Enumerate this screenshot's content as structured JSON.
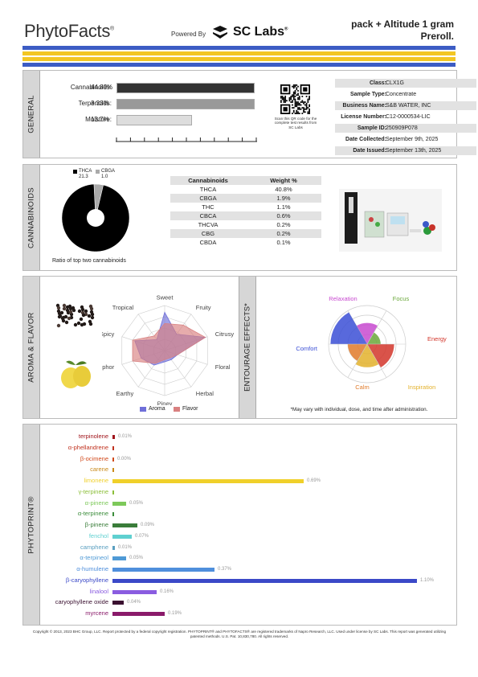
{
  "header": {
    "logo": "PhytoFacts",
    "logo_mark": "®",
    "powered_by": "Powered By",
    "lab": "SC Labs",
    "lab_mark": "®",
    "product_line1": "pack + Altitude 1 gram",
    "product_line2": "Preroll."
  },
  "colors": {
    "stripe_blue": "#3c5cc4",
    "stripe_yellow": "#f3c623"
  },
  "general": {
    "section": "GENERAL",
    "bars": [
      {
        "label": "Cannabinoids:",
        "value": "44.89%",
        "fraction": 1.0,
        "color": "#333333"
      },
      {
        "label": "Terpenoids:",
        "value": "3.33%",
        "fraction": 1.0,
        "color": "#999999"
      },
      {
        "label": "Moisture:",
        "value": "13.7%",
        "fraction": 0.54,
        "color": "#dddddd"
      }
    ],
    "qr_caption": "Scan this QR code for the complete test results from SC Labs",
    "info": [
      {
        "k": "Class:",
        "v": "CLX1G"
      },
      {
        "k": "Sample Type:",
        "v": "Concentrate"
      },
      {
        "k": "Business Name:",
        "v": "S&B WATER, INC"
      },
      {
        "k": "License Number:",
        "v": "C12-0000534-LIC"
      },
      {
        "k": "Sample ID:",
        "v": "250909P078"
      },
      {
        "k": "Date Collected:",
        "v": "September 9th, 2025"
      },
      {
        "k": "Date Issued:",
        "v": "September 13th, 2025"
      }
    ]
  },
  "cannabinoids": {
    "section": "CANNABINOIDS",
    "pie_legend": [
      {
        "name": "THCA",
        "value": "21.3",
        "color": "#000000"
      },
      {
        "name": "CBGA",
        "value": "1.0",
        "color": "#aaaaaa"
      }
    ],
    "pie_caption": "Ratio of top two cannabinoids",
    "table_headers": [
      "Cannabinoids",
      "Weight %"
    ],
    "table_rows": [
      [
        "THCA",
        "40.8%"
      ],
      [
        "CBGA",
        "1.9%"
      ],
      [
        "THC",
        "1.1%"
      ],
      [
        "CBCA",
        "0.6%"
      ],
      [
        "THCVA",
        "0.2%"
      ],
      [
        "CBG",
        "0.2%"
      ],
      [
        "CBDA",
        "0.1%"
      ]
    ]
  },
  "aroma": {
    "section": "AROMA & FLAVOR",
    "axes": [
      "Sweet",
      "Fruity",
      "Citrusy",
      "Floral",
      "Herbal",
      "Piney",
      "Earthy",
      "Camphor",
      "Spicy",
      "Tropical"
    ],
    "aroma_values": [
      0.85,
      0.45,
      0.95,
      0.3,
      0.25,
      0.25,
      0.4,
      0.55,
      0.7,
      0.3
    ],
    "flavor_values": [
      0.6,
      0.7,
      0.95,
      0.3,
      0.2,
      0.2,
      0.35,
      0.75,
      0.75,
      0.4
    ],
    "legend": [
      {
        "name": "Aroma",
        "color": "#6f6fd9"
      },
      {
        "name": "Flavor",
        "color": "#d98080"
      }
    ]
  },
  "entourage": {
    "section": "ENTOURAGE EFFECTS*",
    "labels": [
      {
        "name": "Relaxation",
        "color": "#c84ad0"
      },
      {
        "name": "Focus",
        "color": "#6aa83a"
      },
      {
        "name": "Energy",
        "color": "#d2352a"
      },
      {
        "name": "Inspiration",
        "color": "#e3b12b"
      },
      {
        "name": "Calm",
        "color": "#e07a2a"
      },
      {
        "name": "Comfort",
        "color": "#3b4fd6"
      }
    ],
    "values": [
      0.55,
      0.35,
      0.7,
      0.6,
      0.5,
      0.95
    ],
    "note": "*May vary with individual, dose, and time after administration."
  },
  "phytoprint": {
    "section": "PHYTOPRINT®",
    "max": 1.1,
    "terpenes": [
      {
        "name": "terpinolene",
        "value": 0.01,
        "label": "0.01%",
        "color": "#a0141b"
      },
      {
        "name": "α-phellandrene",
        "value": 0.0,
        "label": "",
        "color": "#c0311e"
      },
      {
        "name": "β-ocimene",
        "value": 0.0,
        "label": "0.00%",
        "color": "#d14a1c"
      },
      {
        "name": "carene",
        "value": 0.0,
        "label": "",
        "color": "#c98a1a"
      },
      {
        "name": "limonene",
        "value": 0.69,
        "label": "0.69%",
        "color": "#f0d02a"
      },
      {
        "name": "γ-terpinene",
        "value": 0.0,
        "label": "",
        "color": "#8cbf3a"
      },
      {
        "name": "α-pinene",
        "value": 0.05,
        "label": "0.05%",
        "color": "#7dc95a"
      },
      {
        "name": "α-terpinene",
        "value": 0.0,
        "label": "",
        "color": "#3a8c3a"
      },
      {
        "name": "β-pinene",
        "value": 0.09,
        "label": "0.09%",
        "color": "#3a7d3a"
      },
      {
        "name": "fenchol",
        "value": 0.07,
        "label": "0.07%",
        "color": "#5fd0d0"
      },
      {
        "name": "camphene",
        "value": 0.01,
        "label": "0.01%",
        "color": "#5a9fc0"
      },
      {
        "name": "α-terpineol",
        "value": 0.05,
        "label": "0.05%",
        "color": "#4f9ad6"
      },
      {
        "name": "α-humulene",
        "value": 0.37,
        "label": "0.37%",
        "color": "#4f8fdc"
      },
      {
        "name": "β-caryophyllene",
        "value": 1.1,
        "label": "1.10%",
        "color": "#3b49c8"
      },
      {
        "name": "linalool",
        "value": 0.16,
        "label": "0.16%",
        "color": "#8a5ce0"
      },
      {
        "name": "caryophyllene oxide",
        "value": 0.04,
        "label": "0.04%",
        "color": "#3a1030"
      },
      {
        "name": "myrcene",
        "value": 0.19,
        "label": "0.19%",
        "color": "#8a1a6a"
      }
    ]
  },
  "footer": "Copyright © 2013, 2023 BHC Group, LLC. Report protected by a federal copyright registration. PHYTOPRINT® and PHYTOFACTS® are registered trademarks of Napro Research, LLC. Used under license by SC Labs. This report was generated utilizing patented methods. U.S. Pat. 10,830,780. All rights reserved."
}
